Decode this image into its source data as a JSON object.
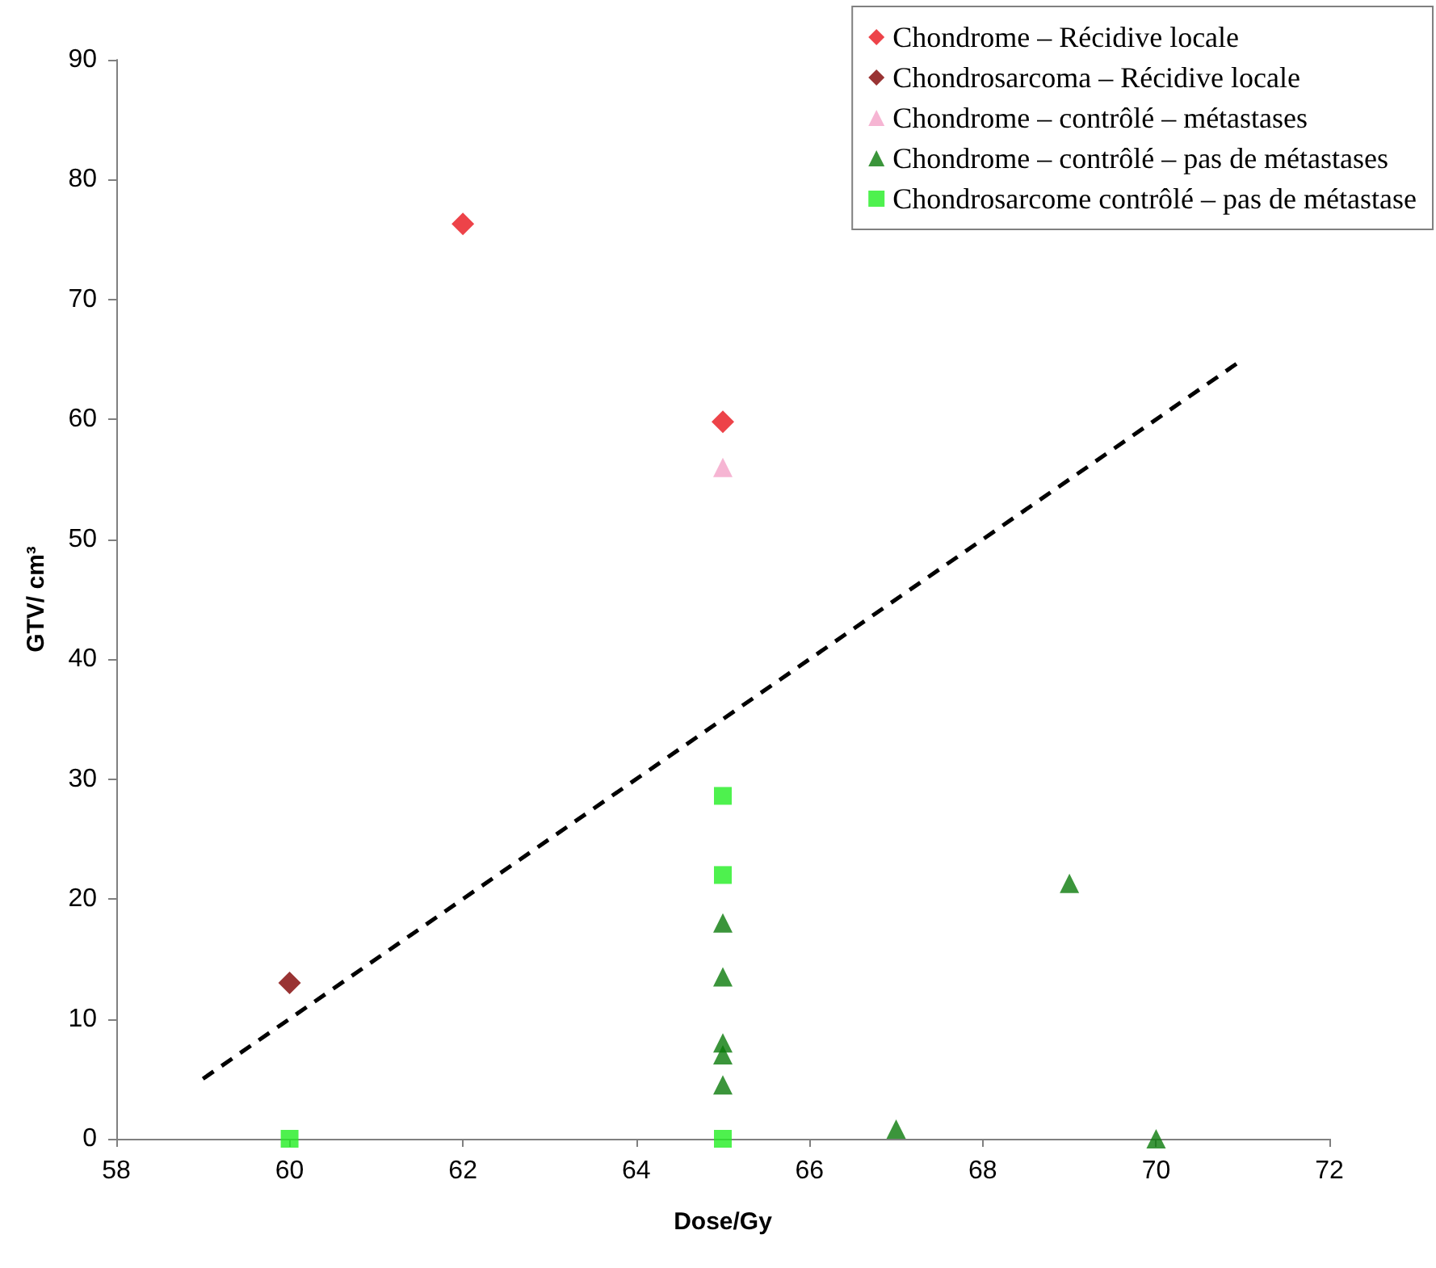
{
  "chart_data": {
    "type": "scatter",
    "xlabel": "Dose/Gy",
    "ylabel": "GTV/ cm³",
    "xlim": [
      58,
      72
    ],
    "xticks": [
      58,
      60,
      62,
      64,
      66,
      68,
      70,
      72
    ],
    "ylim": [
      0,
      90
    ],
    "yticks": [
      0,
      10,
      20,
      30,
      40,
      50,
      60,
      70,
      80,
      90
    ],
    "grid": false,
    "legend": "top right",
    "series": [
      {
        "name": "Chondrome – Récidive locale",
        "color": "#e8141b",
        "marker": "diamond",
        "x": [
          62,
          65
        ],
        "values": [
          76.3,
          59.8
        ]
      },
      {
        "name": "Chondrosarcoma – Récidive locale",
        "color": "#800000",
        "marker": "diamond",
        "x": [
          60
        ],
        "values": [
          13
        ]
      },
      {
        "name": "Chondrome – contrôlé – métastases",
        "color": "#f4a3c8",
        "marker": "triangle",
        "x": [
          65
        ],
        "values": [
          56
        ]
      },
      {
        "name": "Chondrome – contrôlé – pas de métastases",
        "color": "#0a7a0a",
        "marker": "triangle",
        "x": [
          65,
          65,
          65,
          65,
          65,
          67,
          69,
          70
        ],
        "values": [
          18,
          13.5,
          8,
          7,
          4.5,
          0.8,
          21.3,
          0
        ]
      },
      {
        "name": "Chondrosarcome contrôlé – pas de métastase",
        "color": "#22ee22",
        "marker": "square",
        "x": [
          60,
          65,
          65,
          65
        ],
        "values": [
          0,
          28.6,
          22,
          0
        ]
      },
      {
        "type": "line",
        "color": "#000000",
        "line_style": "dashed",
        "marker": "none",
        "x": [
          59,
          71
        ],
        "values": [
          5,
          65
        ]
      }
    ]
  }
}
